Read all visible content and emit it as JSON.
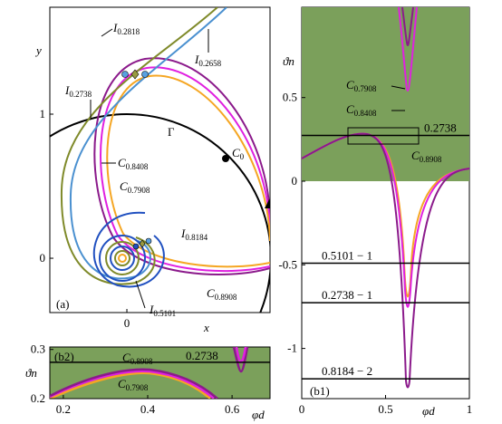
{
  "panel_a": {
    "tag": "(a)",
    "x_label": "x",
    "y_label": "y",
    "xlim": [
      -0.535,
      0.994
    ],
    "ylim": [
      -0.377,
      1.742
    ],
    "xticks": [
      0
    ],
    "yticks": [
      0,
      1
    ],
    "gamma": "Γ",
    "point": {
      "symbol": "C",
      "sub": "0"
    },
    "labels": [
      {
        "symbol": "I",
        "sub": "0.2818"
      },
      {
        "symbol": "I",
        "sub": "0.2658"
      },
      {
        "symbol": "I",
        "sub": "0.2738"
      },
      {
        "symbol": "C",
        "sub": "0.8408"
      },
      {
        "symbol": "C",
        "sub": "0.7908"
      },
      {
        "symbol": "I",
        "sub": "0.8184"
      },
      {
        "symbol": "C",
        "sub": "0.8908"
      },
      {
        "symbol": "I",
        "sub": "0.5101"
      }
    ]
  },
  "panel_b1": {
    "tag": "(b1)",
    "x_label": "φd",
    "y_label": "ϑn",
    "xlim": [
      0,
      1
    ],
    "ylim": [
      -1.3,
      1.04
    ],
    "xticks": [
      0,
      0.5,
      1
    ],
    "yticks": [
      -1,
      -0.5,
      0,
      0.5
    ],
    "shaded_above": 0,
    "lines": [
      {
        "value": 0.2738,
        "label": "0.2738"
      },
      {
        "value": -0.4899,
        "label": "0.5101 − 1"
      },
      {
        "value": -0.7262,
        "label": "0.2738 − 1"
      },
      {
        "value": -1.1816,
        "label": "0.8184 − 2"
      }
    ],
    "labels": [
      {
        "symbol": "C",
        "sub": "0.7908"
      },
      {
        "symbol": "C",
        "sub": "0.8408"
      },
      {
        "symbol": "C",
        "sub": "0.8908"
      }
    ]
  },
  "panel_b2": {
    "tag": "(b2)",
    "x_label": "φd",
    "y_label": "ϑn",
    "xlim": [
      0.168,
      0.69
    ],
    "ylim": [
      0.2,
      0.305
    ],
    "xticks": [
      0.2,
      0.4,
      0.6
    ],
    "yticks": [
      0.2,
      0.3
    ],
    "line": {
      "value": 0.2738,
      "label": "0.2738"
    },
    "labels": [
      {
        "symbol": "C",
        "sub": "0.8908"
      },
      {
        "symbol": "C",
        "sub": "0.7908"
      }
    ]
  }
}
